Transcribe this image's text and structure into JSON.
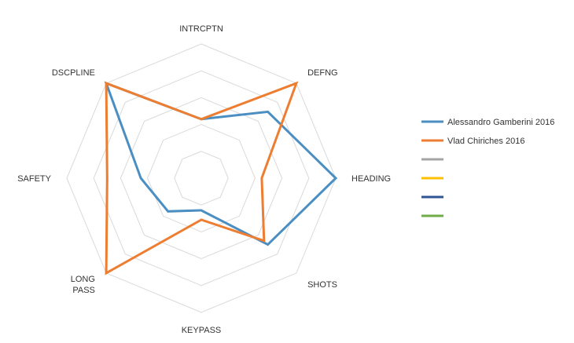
{
  "chart_data": {
    "type": "radar",
    "axes": [
      "INTRCPTN",
      "DEFNG",
      "HEADING",
      "SHOTS",
      "KEYPASS",
      "LONG PASS",
      "SAFETY",
      "DSCPLINE"
    ],
    "range": [
      0,
      100
    ],
    "grid_levels": 5,
    "grid": true,
    "legend_position": "right",
    "series": [
      {
        "name": "Alessandro Gamberini 2016",
        "color": "#4a8ec2",
        "values": [
          44,
          70,
          100,
          70,
          24,
          35,
          45,
          100
        ]
      },
      {
        "name": "Vlad Chiriches 2016",
        "color": "#ed7d31",
        "values": [
          44,
          100,
          45,
          66,
          31,
          100,
          70,
          100
        ]
      },
      {
        "name": "",
        "color": "#a5a5a5",
        "values": []
      },
      {
        "name": "",
        "color": "#ffc000",
        "values": []
      },
      {
        "name": "",
        "color": "#2f5597",
        "values": []
      },
      {
        "name": "",
        "color": "#70ad47",
        "values": []
      }
    ]
  }
}
